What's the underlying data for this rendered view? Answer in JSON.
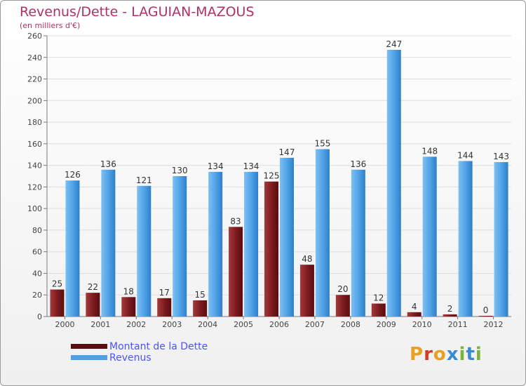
{
  "title": "Revenus/Dette - LAGUIAN-MAZOUS",
  "subtitle": "(en milliers d'€)",
  "logo": "Proxiti",
  "colors": {
    "dette": "#7a1a1e",
    "revenus": "#4ea0e6",
    "title": "#b0306a",
    "legend_text": "#4d52ff"
  },
  "chart_data": {
    "type": "bar",
    "title": "Revenus/Dette - LAGUIAN-MAZOUS",
    "subtitle": "(en milliers d'€)",
    "categories": [
      "2000",
      "2001",
      "2002",
      "2003",
      "2004",
      "2005",
      "2006",
      "2007",
      "2008",
      "2009",
      "2010",
      "2011",
      "2012"
    ],
    "series": [
      {
        "name": "Montant de la Dette",
        "color": "#7a1a1e",
        "values": [
          25,
          22,
          18,
          17,
          15,
          83,
          125,
          48,
          20,
          12,
          4,
          2,
          0
        ]
      },
      {
        "name": "Revenus",
        "color": "#4ea0e6",
        "values": [
          126,
          136,
          121,
          130,
          134,
          134,
          147,
          155,
          136,
          247,
          148,
          144,
          143
        ]
      }
    ],
    "ylim": [
      0,
      260
    ],
    "yticks": [
      0,
      20,
      40,
      60,
      80,
      100,
      120,
      140,
      160,
      180,
      200,
      220,
      240,
      260
    ],
    "grid": true,
    "legend": "bottom-left"
  }
}
